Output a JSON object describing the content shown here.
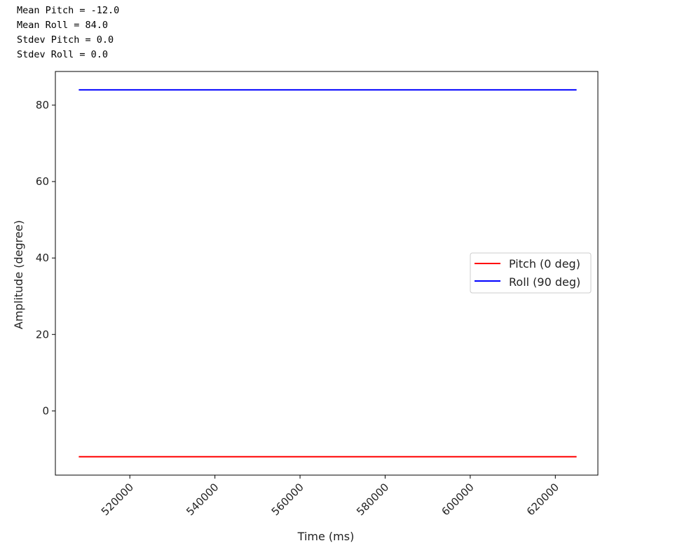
{
  "stats": {
    "mean_pitch": "Mean Pitch = -12.0",
    "mean_roll": "Mean Roll = 84.0",
    "stdev_pitch": "Stdev Pitch = 0.0",
    "stdev_roll": "Stdev Roll = 0.0"
  },
  "chart_data": {
    "type": "line",
    "title": "",
    "xlabel": "Time (ms)",
    "ylabel": "Amplitude (degree)",
    "xlim": [
      502500,
      630000
    ],
    "ylim": [
      -16.8,
      88.8
    ],
    "xticks": [
      520000,
      540000,
      560000,
      580000,
      600000,
      620000
    ],
    "xtick_labels": [
      "520000",
      "540000",
      "560000",
      "580000",
      "600000",
      "620000"
    ],
    "yticks": [
      0,
      20,
      40,
      60,
      80
    ],
    "ytick_labels": [
      "0",
      "20",
      "40",
      "60",
      "80"
    ],
    "grid": false,
    "legend_placement": "center-right",
    "series": [
      {
        "name": "Pitch (0 deg)",
        "color": "#ff0000",
        "x": [
          508000,
          625000
        ],
        "y": [
          -12.0,
          -12.0
        ]
      },
      {
        "name": "Roll (90 deg)",
        "color": "#0000ff",
        "x": [
          508000,
          625000
        ],
        "y": [
          84.0,
          84.0
        ]
      }
    ]
  }
}
